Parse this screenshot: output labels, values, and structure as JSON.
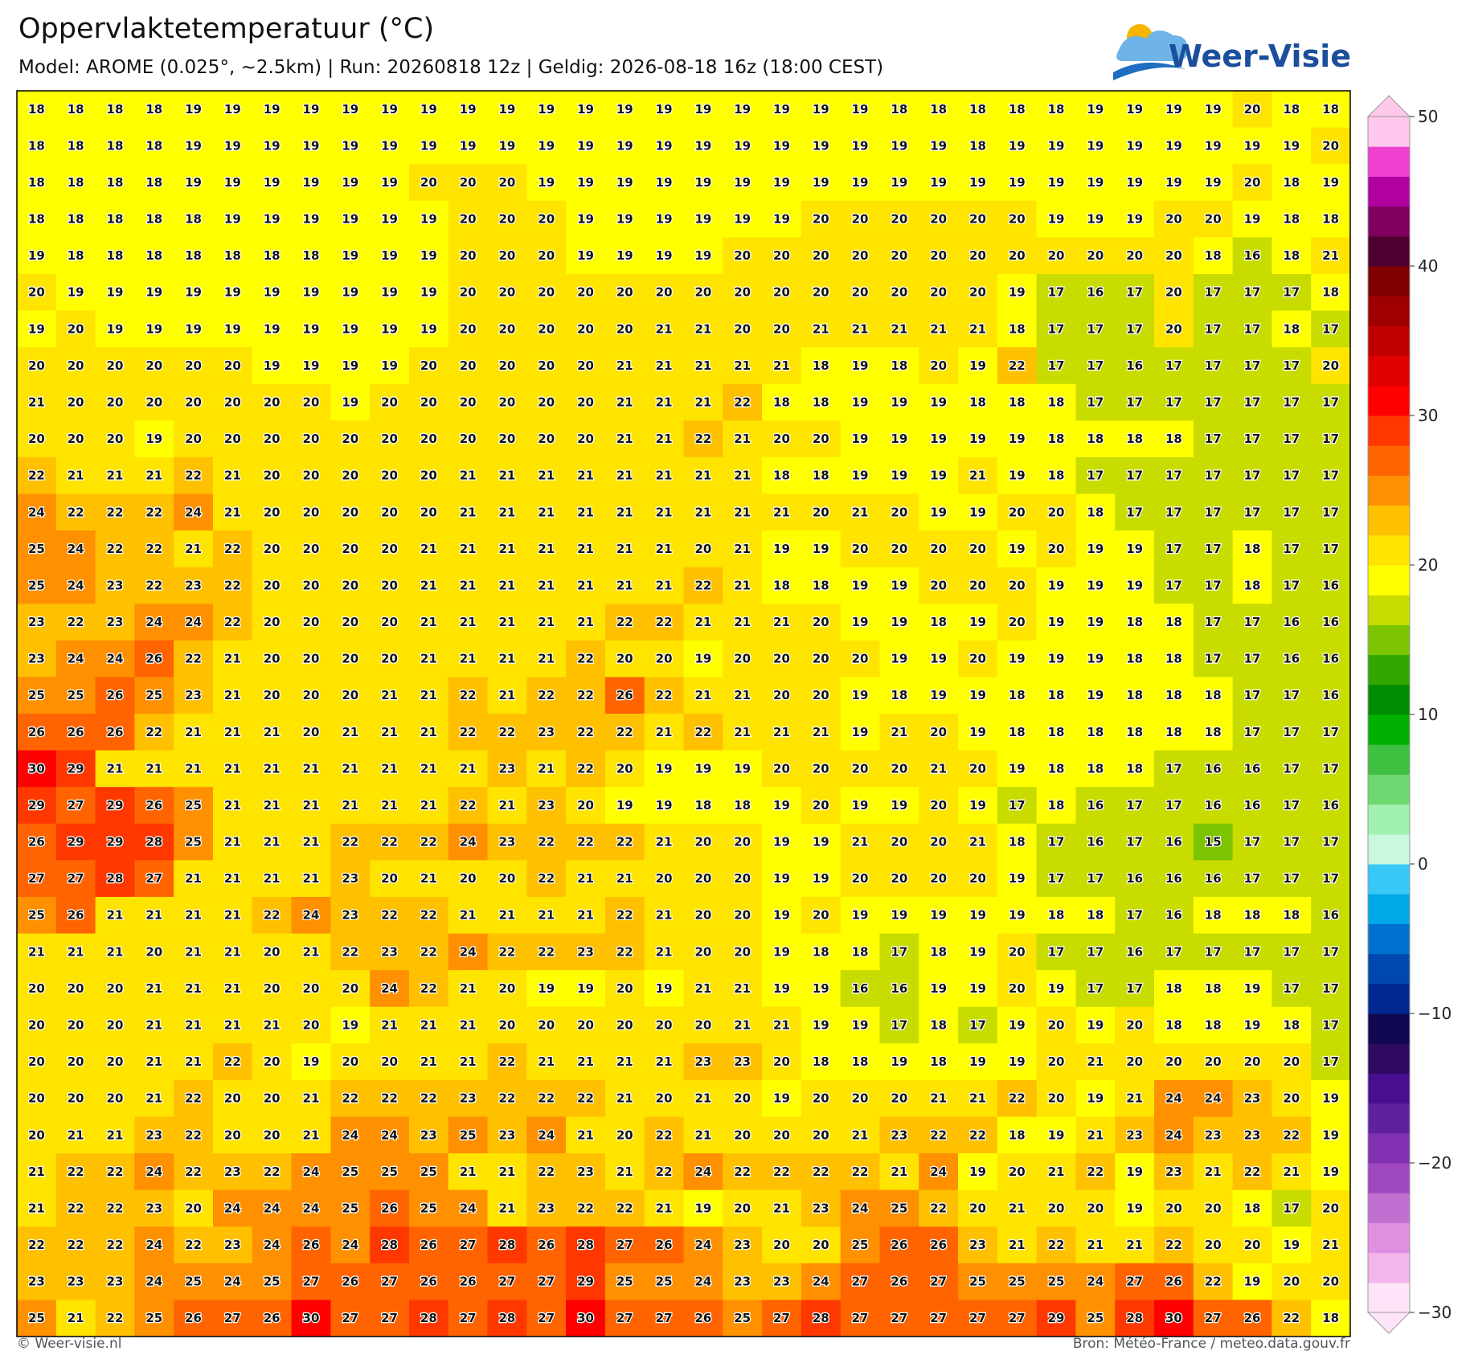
{
  "chart_data": {
    "type": "grid",
    "title": "Oppervlaktetemperatuur (°C)",
    "subtitle": "Model: AROME (0.025°, ~2.5km)  |  Run: 20260818 12z  |  Geldig: 2026-08-18 16z (18:00 CEST)",
    "logo": "Weer-Visie",
    "credit": "© Weer-visie.nl",
    "source": "Bron: Météo-France / meteo.data.gouv.fr",
    "clim": [
      -30,
      50
    ],
    "cticks": [
      50,
      40,
      30,
      20,
      10,
      0,
      {
        "value": -10,
        "label": "−10"
      },
      {
        "value": -20,
        "label": "−20"
      },
      {
        "value": -30,
        "label": "−30"
      }
    ],
    "colors": [
      "#fde4f8",
      "#f4b4ec",
      "#e090e0",
      "#c070d0",
      "#a048c0",
      "#8030b0",
      "#6020a0",
      "#481090",
      "#300a60",
      "#100850",
      "#002890",
      "#0048b0",
      "#0070d0",
      "#00a8e8",
      "#38c8f8",
      "#c8f8e0",
      "#a0f0b0",
      "#70d870",
      "#40c040",
      "#00b000",
      "#008c00",
      "#30a800",
      "#7cc400",
      "#c8dc00",
      "#ffff00",
      "#ffe400",
      "#ffc000",
      "#ff9000",
      "#ff6400",
      "#ff3800",
      "#ff0000",
      "#e00000",
      "#c00000",
      "#a00000",
      "#800000",
      "#500030",
      "#800060",
      "#b000a0",
      "#f040d0",
      "#ffc8ec"
    ],
    "values": [
      [
        18,
        18,
        18,
        18,
        19,
        19,
        19,
        19,
        19,
        19,
        19,
        19,
        19,
        19,
        19,
        19,
        19,
        19,
        19,
        19,
        19,
        19,
        18,
        18,
        18,
        18,
        18,
        19,
        19,
        19,
        19,
        20,
        18,
        18
      ],
      [
        18,
        18,
        18,
        18,
        19,
        19,
        19,
        19,
        19,
        19,
        19,
        19,
        19,
        19,
        19,
        19,
        19,
        19,
        19,
        19,
        19,
        19,
        19,
        19,
        18,
        19,
        19,
        19,
        19,
        19,
        19,
        19,
        19,
        20
      ],
      [
        18,
        18,
        18,
        18,
        19,
        19,
        19,
        19,
        19,
        19,
        20,
        20,
        20,
        19,
        19,
        19,
        19,
        19,
        19,
        19,
        19,
        19,
        19,
        19,
        19,
        19,
        19,
        19,
        19,
        19,
        19,
        20,
        18,
        19
      ],
      [
        18,
        18,
        18,
        18,
        18,
        19,
        19,
        19,
        19,
        19,
        19,
        20,
        20,
        20,
        19,
        19,
        19,
        19,
        19,
        19,
        20,
        20,
        20,
        20,
        20,
        20,
        19,
        19,
        19,
        20,
        20,
        19,
        18,
        18
      ],
      [
        19,
        18,
        18,
        18,
        18,
        18,
        18,
        18,
        19,
        19,
        19,
        20,
        20,
        20,
        19,
        19,
        19,
        19,
        20,
        20,
        20,
        20,
        20,
        20,
        20,
        20,
        20,
        20,
        20,
        20,
        18,
        16,
        18,
        21
      ],
      [
        20,
        19,
        19,
        19,
        19,
        19,
        19,
        19,
        19,
        19,
        19,
        20,
        20,
        20,
        20,
        20,
        20,
        20,
        20,
        20,
        20,
        20,
        20,
        20,
        20,
        19,
        17,
        16,
        17,
        20,
        17,
        17,
        17,
        18
      ],
      [
        19,
        20,
        19,
        19,
        19,
        19,
        19,
        19,
        19,
        19,
        19,
        20,
        20,
        20,
        20,
        20,
        21,
        21,
        20,
        20,
        21,
        21,
        21,
        21,
        21,
        18,
        17,
        17,
        17,
        20,
        17,
        17,
        18,
        17
      ],
      [
        20,
        20,
        20,
        20,
        20,
        20,
        19,
        19,
        19,
        19,
        20,
        20,
        20,
        20,
        20,
        21,
        21,
        21,
        21,
        21,
        18,
        19,
        18,
        20,
        19,
        22,
        17,
        17,
        16,
        17,
        17,
        17,
        17,
        20
      ],
      [
        21,
        20,
        20,
        20,
        20,
        20,
        20,
        20,
        19,
        20,
        20,
        20,
        20,
        20,
        20,
        21,
        21,
        21,
        22,
        18,
        18,
        19,
        19,
        19,
        18,
        18,
        18,
        17,
        17,
        17,
        17,
        17,
        17,
        17
      ],
      [
        20,
        20,
        20,
        19,
        20,
        20,
        20,
        20,
        20,
        20,
        20,
        20,
        20,
        20,
        20,
        21,
        21,
        22,
        21,
        20,
        20,
        19,
        19,
        19,
        19,
        19,
        18,
        18,
        18,
        18,
        17,
        17,
        17,
        17
      ],
      [
        22,
        21,
        21,
        21,
        22,
        21,
        20,
        20,
        20,
        20,
        20,
        21,
        21,
        21,
        21,
        21,
        21,
        21,
        21,
        18,
        18,
        19,
        19,
        19,
        21,
        19,
        18,
        17,
        17,
        17,
        17,
        17,
        17,
        17
      ],
      [
        24,
        22,
        22,
        22,
        24,
        21,
        20,
        20,
        20,
        20,
        20,
        21,
        21,
        21,
        21,
        21,
        21,
        21,
        21,
        21,
        20,
        21,
        20,
        19,
        19,
        20,
        20,
        18,
        17,
        17,
        17,
        17,
        17,
        17
      ],
      [
        25,
        24,
        22,
        22,
        21,
        22,
        20,
        20,
        20,
        20,
        21,
        21,
        21,
        21,
        21,
        21,
        21,
        20,
        21,
        19,
        19,
        20,
        20,
        20,
        20,
        19,
        20,
        19,
        19,
        17,
        17,
        18,
        17,
        17
      ],
      [
        25,
        24,
        23,
        22,
        23,
        22,
        20,
        20,
        20,
        20,
        21,
        21,
        21,
        21,
        21,
        21,
        21,
        22,
        21,
        18,
        18,
        19,
        19,
        20,
        20,
        20,
        19,
        19,
        19,
        17,
        17,
        18,
        17,
        16
      ],
      [
        23,
        22,
        23,
        24,
        24,
        22,
        20,
        20,
        20,
        20,
        21,
        21,
        21,
        21,
        21,
        22,
        22,
        21,
        21,
        21,
        20,
        19,
        19,
        18,
        19,
        20,
        19,
        19,
        18,
        18,
        17,
        17,
        16,
        16
      ],
      [
        23,
        24,
        24,
        26,
        22,
        21,
        20,
        20,
        20,
        20,
        21,
        21,
        21,
        21,
        22,
        20,
        20,
        19,
        20,
        20,
        20,
        20,
        19,
        19,
        20,
        19,
        19,
        19,
        18,
        18,
        17,
        17,
        16,
        16
      ],
      [
        25,
        25,
        26,
        25,
        23,
        21,
        20,
        20,
        20,
        21,
        21,
        22,
        21,
        22,
        22,
        26,
        22,
        21,
        21,
        20,
        20,
        19,
        18,
        19,
        19,
        18,
        18,
        19,
        18,
        18,
        18,
        17,
        17,
        16
      ],
      [
        26,
        26,
        26,
        22,
        21,
        21,
        21,
        20,
        21,
        21,
        21,
        22,
        22,
        23,
        22,
        22,
        21,
        22,
        21,
        21,
        21,
        19,
        21,
        20,
        19,
        18,
        18,
        18,
        18,
        18,
        18,
        17,
        17,
        17
      ],
      [
        30,
        29,
        21,
        21,
        21,
        21,
        21,
        21,
        21,
        21,
        21,
        21,
        23,
        21,
        22,
        20,
        19,
        19,
        19,
        20,
        20,
        20,
        20,
        21,
        20,
        19,
        18,
        18,
        18,
        17,
        16,
        16,
        17,
        17
      ],
      [
        29,
        27,
        29,
        26,
        25,
        21,
        21,
        21,
        21,
        21,
        21,
        22,
        21,
        23,
        20,
        19,
        19,
        18,
        18,
        19,
        20,
        19,
        19,
        20,
        19,
        17,
        18,
        16,
        17,
        17,
        16,
        16,
        17,
        16
      ],
      [
        26,
        29,
        29,
        28,
        25,
        21,
        21,
        21,
        22,
        22,
        22,
        24,
        23,
        22,
        22,
        22,
        21,
        20,
        20,
        19,
        19,
        21,
        20,
        20,
        21,
        18,
        17,
        16,
        17,
        16,
        15,
        17,
        17,
        17
      ],
      [
        27,
        27,
        28,
        27,
        21,
        21,
        21,
        21,
        23,
        20,
        21,
        20,
        20,
        22,
        21,
        21,
        20,
        20,
        20,
        19,
        19,
        20,
        20,
        20,
        20,
        19,
        17,
        17,
        16,
        16,
        16,
        17,
        17,
        17
      ],
      [
        25,
        26,
        21,
        21,
        21,
        21,
        22,
        24,
        23,
        22,
        22,
        21,
        21,
        21,
        21,
        22,
        21,
        20,
        20,
        19,
        20,
        19,
        19,
        19,
        19,
        19,
        18,
        18,
        17,
        16,
        18,
        18,
        18,
        16
      ],
      [
        21,
        21,
        21,
        20,
        21,
        21,
        20,
        21,
        22,
        23,
        22,
        24,
        22,
        22,
        23,
        22,
        21,
        20,
        20,
        19,
        18,
        18,
        17,
        18,
        19,
        20,
        17,
        17,
        16,
        17,
        17,
        17,
        17,
        17
      ],
      [
        20,
        20,
        20,
        21,
        21,
        21,
        20,
        20,
        20,
        24,
        22,
        21,
        20,
        19,
        19,
        20,
        19,
        21,
        21,
        19,
        19,
        16,
        16,
        19,
        19,
        20,
        19,
        17,
        17,
        18,
        18,
        19,
        17,
        17
      ],
      [
        20,
        20,
        20,
        21,
        21,
        21,
        21,
        20,
        19,
        21,
        21,
        21,
        20,
        20,
        20,
        20,
        20,
        20,
        21,
        21,
        19,
        19,
        17,
        18,
        17,
        19,
        20,
        19,
        20,
        18,
        18,
        19,
        18,
        17
      ],
      [
        20,
        20,
        20,
        21,
        21,
        22,
        20,
        19,
        20,
        20,
        21,
        21,
        22,
        21,
        21,
        21,
        21,
        23,
        23,
        20,
        18,
        18,
        19,
        18,
        19,
        19,
        20,
        21,
        20,
        20,
        20,
        20,
        20,
        17
      ],
      [
        20,
        20,
        20,
        21,
        22,
        20,
        20,
        21,
        22,
        22,
        22,
        23,
        22,
        22,
        22,
        21,
        20,
        21,
        20,
        19,
        20,
        20,
        20,
        21,
        21,
        22,
        20,
        19,
        21,
        24,
        24,
        23,
        20,
        19
      ],
      [
        20,
        21,
        21,
        23,
        22,
        20,
        20,
        21,
        24,
        24,
        23,
        25,
        23,
        24,
        21,
        20,
        22,
        21,
        20,
        20,
        20,
        21,
        23,
        22,
        22,
        18,
        19,
        21,
        23,
        24,
        23,
        23,
        22,
        19
      ],
      [
        21,
        22,
        22,
        24,
        22,
        23,
        22,
        24,
        25,
        25,
        25,
        21,
        21,
        22,
        23,
        21,
        22,
        24,
        22,
        22,
        22,
        22,
        21,
        24,
        19,
        20,
        21,
        22,
        19,
        23,
        21,
        22,
        21,
        19
      ],
      [
        21,
        22,
        22,
        23,
        20,
        24,
        24,
        24,
        25,
        26,
        25,
        24,
        21,
        23,
        22,
        22,
        21,
        19,
        20,
        21,
        23,
        24,
        25,
        22,
        20,
        21,
        20,
        20,
        19,
        20,
        20,
        18,
        17,
        20
      ],
      [
        22,
        22,
        22,
        24,
        22,
        23,
        24,
        26,
        24,
        28,
        26,
        27,
        28,
        26,
        28,
        27,
        26,
        24,
        23,
        20,
        20,
        25,
        26,
        26,
        23,
        21,
        22,
        21,
        21,
        22,
        20,
        20,
        19,
        21
      ],
      [
        23,
        23,
        23,
        24,
        25,
        24,
        25,
        27,
        26,
        27,
        26,
        26,
        27,
        27,
        29,
        25,
        25,
        24,
        23,
        23,
        24,
        27,
        26,
        27,
        25,
        25,
        25,
        24,
        27,
        26,
        22,
        19,
        20,
        20
      ],
      [
        25,
        21,
        22,
        25,
        26,
        27,
        26,
        30,
        27,
        27,
        28,
        27,
        28,
        27,
        30,
        27,
        27,
        26,
        25,
        27,
        28,
        27,
        27,
        27,
        27,
        27,
        29,
        25,
        28,
        30,
        27,
        26,
        22,
        18
      ]
    ]
  }
}
